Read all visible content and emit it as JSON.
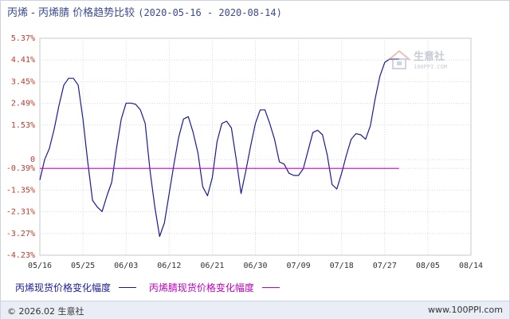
{
  "title": {
    "main": "丙烯 - 丙烯腈 价格趋势比较",
    "range": "(2020-05-16 - 2020-08-14)"
  },
  "watermark": {
    "brand": "生意社",
    "site": "100PPI.COM"
  },
  "legend": {
    "series1_label": "丙烯现货价格变化幅度",
    "series2_label": "丙烯腈现货价格变化幅度"
  },
  "footer": {
    "copyright": "© 2026.02 生意社",
    "site": "www.100PPI.com"
  },
  "colors": {
    "series1": "#1a1a99",
    "series2": "#cc00cc",
    "grid": "#d8d8d8",
    "axis_tick": "#c0392b"
  },
  "chart_data": {
    "type": "line",
    "title": "丙烯 - 丙烯腈 价格趋势比较",
    "ylim": [
      -4.23,
      5.37
    ],
    "yticks": [
      5.37,
      4.41,
      3.45,
      2.49,
      1.53,
      0,
      -0.39,
      -1.35,
      -2.31,
      -3.27,
      -4.23
    ],
    "ytick_labels": [
      "5.37%",
      "4.41%",
      "3.45%",
      "2.49%",
      "1.53%",
      "0",
      "-0.39%",
      "-1.35%",
      "-2.31%",
      "-3.27%",
      "-4.23%"
    ],
    "xlim": [
      0,
      90
    ],
    "xticks": [
      0,
      9,
      18,
      27,
      36,
      45,
      54,
      63,
      72,
      81,
      90
    ],
    "xtick_labels": [
      "05/16",
      "05/25",
      "06/03",
      "06/12",
      "06/21",
      "06/30",
      "07/09",
      "07/18",
      "07/27",
      "08/05",
      "08/14"
    ],
    "grid": true,
    "legend_position": "bottom",
    "series": [
      {
        "name": "丙烯现货价格变化幅度",
        "color": "#1a1a99",
        "points": [
          [
            0,
            -0.9
          ],
          [
            1,
            0.0
          ],
          [
            2,
            0.5
          ],
          [
            3,
            1.35
          ],
          [
            4,
            2.4
          ],
          [
            5,
            3.3
          ],
          [
            6,
            3.6
          ],
          [
            7,
            3.6
          ],
          [
            8,
            3.3
          ],
          [
            9,
            1.8
          ],
          [
            10,
            -0.1
          ],
          [
            11,
            -1.8
          ],
          [
            12,
            -2.1
          ],
          [
            13,
            -2.3
          ],
          [
            14,
            -1.6
          ],
          [
            15,
            -1.0
          ],
          [
            16,
            0.5
          ],
          [
            17,
            1.8
          ],
          [
            18,
            2.5
          ],
          [
            19,
            2.5
          ],
          [
            20,
            2.45
          ],
          [
            21,
            2.2
          ],
          [
            22,
            1.6
          ],
          [
            23,
            -0.5
          ],
          [
            24,
            -2.1
          ],
          [
            25,
            -3.4
          ],
          [
            26,
            -2.8
          ],
          [
            27,
            -1.5
          ],
          [
            28,
            -0.2
          ],
          [
            29,
            1.0
          ],
          [
            30,
            1.8
          ],
          [
            31,
            1.9
          ],
          [
            32,
            1.2
          ],
          [
            33,
            0.3
          ],
          [
            34,
            -1.2
          ],
          [
            35,
            -1.6
          ],
          [
            36,
            -0.8
          ],
          [
            37,
            0.8
          ],
          [
            38,
            1.6
          ],
          [
            39,
            1.7
          ],
          [
            40,
            1.4
          ],
          [
            41,
            0.0
          ],
          [
            42,
            -1.5
          ],
          [
            43,
            -0.5
          ],
          [
            44,
            0.6
          ],
          [
            45,
            1.6
          ],
          [
            46,
            2.2
          ],
          [
            47,
            2.2
          ],
          [
            48,
            1.6
          ],
          [
            49,
            0.9
          ],
          [
            50,
            -0.1
          ],
          [
            51,
            -0.2
          ],
          [
            52,
            -0.6
          ],
          [
            53,
            -0.7
          ],
          [
            54,
            -0.7
          ],
          [
            55,
            -0.4
          ],
          [
            56,
            0.4
          ],
          [
            57,
            1.2
          ],
          [
            58,
            1.3
          ],
          [
            59,
            1.1
          ],
          [
            60,
            0.2
          ],
          [
            61,
            -1.1
          ],
          [
            62,
            -1.3
          ],
          [
            63,
            -0.6
          ],
          [
            64,
            0.2
          ],
          [
            65,
            0.9
          ],
          [
            66,
            1.15
          ],
          [
            67,
            1.1
          ],
          [
            68,
            0.9
          ],
          [
            69,
            1.5
          ],
          [
            70,
            2.7
          ],
          [
            71,
            3.7
          ],
          [
            72,
            4.3
          ],
          [
            73,
            4.45
          ],
          [
            74,
            4.45
          ],
          [
            75,
            4.45
          ]
        ]
      },
      {
        "name": "丙烯腈现货价格变化幅度",
        "color": "#cc00cc",
        "points": [
          [
            0,
            -0.39
          ],
          [
            75,
            -0.39
          ]
        ]
      }
    ]
  }
}
